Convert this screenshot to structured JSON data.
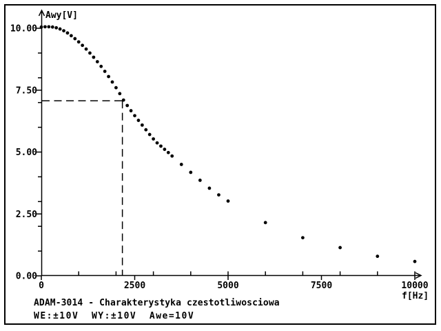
{
  "colors": {
    "ink": "#000000",
    "paper": "#ffffff"
  },
  "chart_data": {
    "type": "scatter",
    "title": "ADAM-3014 - Charakterystyka czestotliwosciowa",
    "subtitle": "WE:±10V  WY:±10V  Awe=10V",
    "xlabel": "f[Hz]",
    "ylabel": "Awy[V]",
    "xlim": [
      0,
      10000
    ],
    "ylim": [
      0,
      10
    ],
    "grid": false,
    "x_major_ticks": [
      {
        "value": 0,
        "label": "0"
      },
      {
        "value": 2500,
        "label": "2500"
      },
      {
        "value": 5000,
        "label": "5000"
      },
      {
        "value": 7500,
        "label": "7500"
      },
      {
        "value": 10000,
        "label": "10000"
      }
    ],
    "x_minor_ticks": [
      1000,
      2000,
      3000,
      4000,
      5000,
      6000,
      7000,
      8000,
      9000,
      10000
    ],
    "y_major_ticks": [
      {
        "value": 10,
        "label": "10.00"
      },
      {
        "value": 7.5,
        "label": "7.50"
      },
      {
        "value": 5,
        "label": "5.00"
      },
      {
        "value": 2.5,
        "label": "2.50"
      },
      {
        "value": 0,
        "label": "0.00"
      }
    ],
    "y_minor_ticks": [
      1,
      2,
      3,
      4,
      6,
      7,
      8,
      9
    ],
    "cursor": {
      "f": 2170,
      "v": 7.07
    },
    "points": [
      [
        0,
        10.05
      ],
      [
        100,
        10.06
      ],
      [
        200,
        10.06
      ],
      [
        300,
        10.05
      ],
      [
        400,
        10.02
      ],
      [
        500,
        9.97
      ],
      [
        600,
        9.9
      ],
      [
        700,
        9.81
      ],
      [
        800,
        9.7
      ],
      [
        900,
        9.58
      ],
      [
        1000,
        9.45
      ],
      [
        1100,
        9.31
      ],
      [
        1200,
        9.16
      ],
      [
        1300,
        9.0
      ],
      [
        1400,
        8.83
      ],
      [
        1500,
        8.65
      ],
      [
        1600,
        8.46
      ],
      [
        1700,
        8.26
      ],
      [
        1800,
        8.05
      ],
      [
        1900,
        7.83
      ],
      [
        2000,
        7.6
      ],
      [
        2100,
        7.36
      ],
      [
        2200,
        7.1
      ],
      [
        2300,
        6.88
      ],
      [
        2400,
        6.67
      ],
      [
        2500,
        6.47
      ],
      [
        2600,
        6.28
      ],
      [
        2700,
        6.09
      ],
      [
        2800,
        5.9
      ],
      [
        2900,
        5.71
      ],
      [
        3000,
        5.53
      ],
      [
        3100,
        5.37
      ],
      [
        3200,
        5.24
      ],
      [
        3300,
        5.11
      ],
      [
        3400,
        4.98
      ],
      [
        3500,
        4.84
      ],
      [
        3750,
        4.5
      ],
      [
        4000,
        4.18
      ],
      [
        4250,
        3.86
      ],
      [
        4500,
        3.54
      ],
      [
        4750,
        3.27
      ],
      [
        5000,
        3.02
      ],
      [
        6000,
        2.15
      ],
      [
        7000,
        1.54
      ],
      [
        8000,
        1.14
      ],
      [
        9000,
        0.79
      ],
      [
        10000,
        0.58
      ]
    ]
  }
}
